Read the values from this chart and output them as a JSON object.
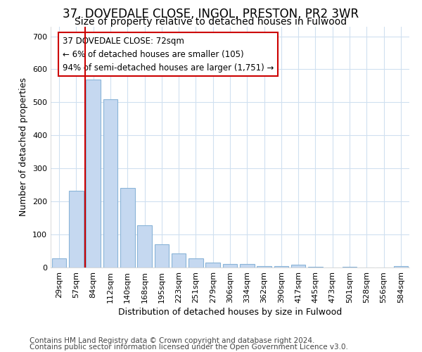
{
  "title": "37, DOVEDALE CLOSE, INGOL, PRESTON, PR2 3WR",
  "subtitle": "Size of property relative to detached houses in Fulwood",
  "xlabel": "Distribution of detached houses by size in Fulwood",
  "ylabel": "Number of detached properties",
  "bar_labels": [
    "29sqm",
    "57sqm",
    "84sqm",
    "112sqm",
    "140sqm",
    "168sqm",
    "195sqm",
    "223sqm",
    "251sqm",
    "279sqm",
    "306sqm",
    "334sqm",
    "362sqm",
    "390sqm",
    "417sqm",
    "445sqm",
    "473sqm",
    "501sqm",
    "528sqm",
    "556sqm",
    "584sqm"
  ],
  "bar_values": [
    27,
    232,
    570,
    510,
    240,
    127,
    70,
    42,
    27,
    15,
    10,
    11,
    5,
    5,
    8,
    3,
    0,
    3,
    0,
    0,
    5
  ],
  "bar_color": "#c5d8f0",
  "bar_edge_color": "#8ab4d8",
  "vline_x": 1.5,
  "vline_color": "#cc0000",
  "annotation_text": "37 DOVEDALE CLOSE: 72sqm\n← 6% of detached houses are smaller (105)\n94% of semi-detached houses are larger (1,751) →",
  "annotation_box_color": "white",
  "annotation_box_edge_color": "#cc0000",
  "ylim": [
    0,
    730
  ],
  "yticks": [
    0,
    100,
    200,
    300,
    400,
    500,
    600,
    700
  ],
  "footer_line1": "Contains HM Land Registry data © Crown copyright and database right 2024.",
  "footer_line2": "Contains public sector information licensed under the Open Government Licence v3.0.",
  "bg_color": "#ffffff",
  "plot_bg_color": "#ffffff",
  "grid_color": "#d0e0f0",
  "title_fontsize": 12,
  "subtitle_fontsize": 10,
  "axis_label_fontsize": 9,
  "tick_fontsize": 8,
  "footer_fontsize": 7.5
}
